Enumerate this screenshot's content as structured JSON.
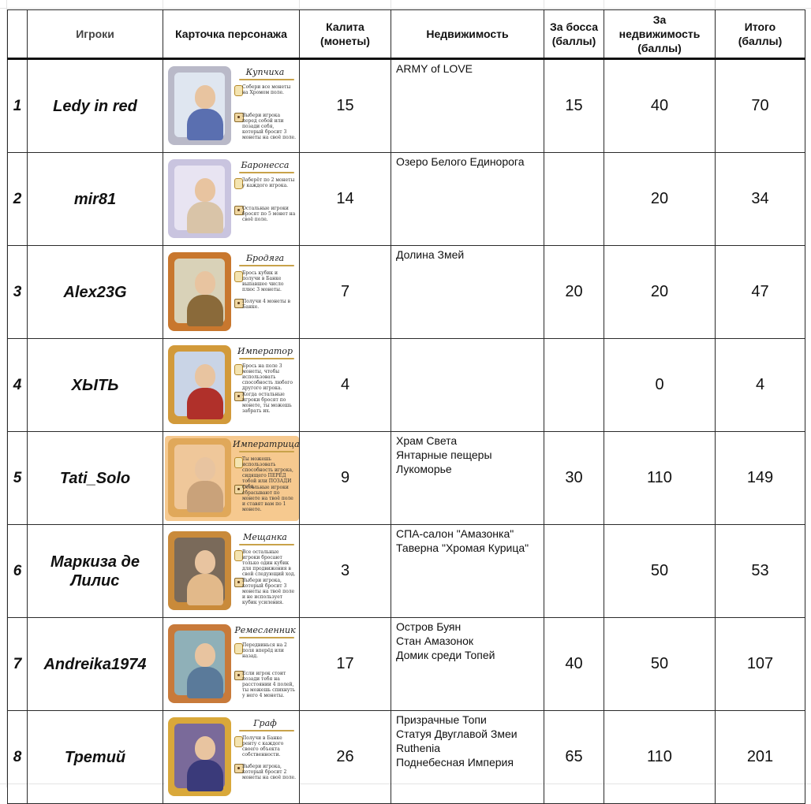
{
  "header": {
    "players": "Игроки",
    "card": "Карточка персонажа",
    "purse_line1": "Калита",
    "purse_line2": "(монеты)",
    "estate": "Недвижимость",
    "boss_line1": "За босса",
    "boss_line2": "(баллы)",
    "estate_pts_line1": "За",
    "estate_pts_line2": "недвижимость",
    "estate_pts_line3": "(баллы)",
    "total_line1": "Итого",
    "total_line2": "(баллы)"
  },
  "rows": [
    {
      "num": "1",
      "player": "Ledy in red",
      "player_line2": "",
      "card": {
        "title": "Купчиха",
        "text1": "Собери все монеты на Хромом поле.",
        "text2": "Выбери игрока перед собой или позади себя, который бросит 3 монеты на своё поле.",
        "frame": "#b9b9c8",
        "bg": "#dfe6f0",
        "body": "#5a6fb0"
      },
      "purse": "15",
      "estate": [
        "ARMY of LOVE"
      ],
      "boss": "15",
      "estate_pts": "40",
      "total": "70"
    },
    {
      "num": "2",
      "player": "mir81",
      "player_line2": "",
      "card": {
        "title": "Баронесса",
        "text1": "Заберёт по 2 монеты у каждого игрока.",
        "text2": "Остальные игроки бросят по 5 монет на своё поле.",
        "frame": "#c9c4df",
        "bg": "#e8e4f2",
        "body": "#d9c4a8"
      },
      "purse": "14",
      "estate": [
        "Озеро Белого Единорога"
      ],
      "boss": "",
      "estate_pts": "20",
      "total": "34"
    },
    {
      "num": "3",
      "player": "Alex23G",
      "player_line2": "",
      "card": {
        "title": "Бродяга",
        "text1": "Брось кубик и получи в Банке выпавшее число плюс 3 монеты.",
        "text2": "Получи 4 монеты в Банке.",
        "frame": "#c8772e",
        "bg": "#d9d2b8",
        "body": "#8a6a3a"
      },
      "purse": "7",
      "estate": [
        "Долина Змей"
      ],
      "boss": "20",
      "estate_pts": "20",
      "total": "47"
    },
    {
      "num": "4",
      "player": "ХЫТЬ",
      "player_line2": "",
      "card": {
        "title": "Император",
        "text1": "Брось на поле 3 монеты, чтобы использовать способность любого другого игрока.",
        "text2": "Когда остальные игроки бросят по монете, ты можешь забрать их.",
        "frame": "#d29a3a",
        "bg": "#c9d4e6",
        "body": "#b0302a"
      },
      "purse": "4",
      "estate": [],
      "boss": "",
      "estate_pts": "0",
      "total": "4"
    },
    {
      "num": "5",
      "player": "Tati_Solo",
      "player_line2": "",
      "card": {
        "title": "Императрица",
        "text1": "Ты можешь использовать способность игрока, сидящего ПЕРЕД тобой или ПОЗАДИ тебя.",
        "text2": "Остальные игроки сбрасывают по монете на твоё поле и ставят вам по 1 монете.",
        "frame": "#e0a85a",
        "bg": "#efc79a",
        "body": "#c9a27a"
      },
      "purse": "9",
      "estate": [
        "Храм Света",
        "Янтарные пещеры",
        "Лукоморье"
      ],
      "boss": "30",
      "estate_pts": "110",
      "total": "149"
    },
    {
      "num": "6",
      "player": "Маркиза де",
      "player_line2": "Лилис",
      "card": {
        "title": "Мещанка",
        "text1": "Все остальные игроки бросают только один кубик для продвижения в свой следующий ход.",
        "text2": "Выбери игрока, который бросит 3 монеты на твоё поле и не использует кубик усиления.",
        "frame": "#c98a3a",
        "bg": "#7a6a5a",
        "body": "#e2b98a"
      },
      "purse": "3",
      "estate": [
        "СПА-салон \"Амазонка\"",
        "Таверна \"Хромая Курица\""
      ],
      "boss": "",
      "estate_pts": "50",
      "total": "53"
    },
    {
      "num": "7",
      "player": "Andreika1974",
      "player_line2": "",
      "card": {
        "title": "Ремесленник",
        "text1": "Передвинься на 2 поля вперёд или назад.",
        "text2": "Если игрок стоит позади тебя на расстоянии 4 полей, ты можешь спихнуть у него 4 монеты.",
        "frame": "#c87a3a",
        "bg": "#8fb0b8",
        "body": "#5a7a9a"
      },
      "purse": "17",
      "estate": [
        "Остров Буян",
        "Стан Амазонок",
        "Домик среди Топей"
      ],
      "boss": "40",
      "estate_pts": "50",
      "total": "107"
    },
    {
      "num": "8",
      "player": "Третий",
      "player_line2": "",
      "card": {
        "title": "Граф",
        "text1": "Получи в Банке ренту с каждого своего объекта собственности.",
        "text2": "Выбери игрока, который бросит 2 монеты на своё поле.",
        "frame": "#d9a83a",
        "bg": "#7a6a9a",
        "body": "#3a3a7a"
      },
      "purse": "26",
      "estate": [
        "Призрачные Топи",
        "Статуя Двуглавой Змеи",
        "Ruthenia",
        "Поднебесная Империя"
      ],
      "boss": "65",
      "estate_pts": "110",
      "total": "201"
    }
  ]
}
